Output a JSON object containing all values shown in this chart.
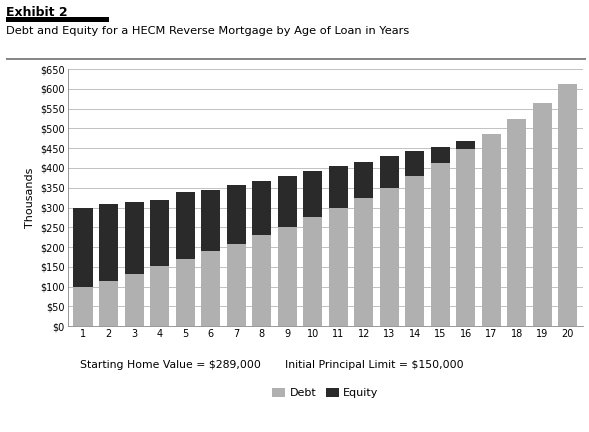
{
  "years": [
    1,
    2,
    3,
    4,
    5,
    6,
    7,
    8,
    9,
    10,
    11,
    12,
    13,
    14,
    15,
    16,
    17,
    18,
    19,
    20
  ],
  "debt": [
    100,
    115,
    132,
    153,
    170,
    190,
    208,
    230,
    252,
    275,
    298,
    323,
    350,
    380,
    413,
    447,
    487,
    525,
    565,
    612
  ],
  "equity": [
    200,
    193,
    183,
    165,
    168,
    155,
    150,
    138,
    128,
    118,
    107,
    93,
    80,
    62,
    40,
    20,
    0,
    0,
    0,
    0
  ],
  "debt_color": "#b0b0b0",
  "equity_color": "#2a2a2a",
  "title": "Debt and Equity for a HECM Reverse Mortgage by Age of Loan in Years",
  "exhibit": "Exhibit 2",
  "ylabel": "Thousands",
  "xlabel1": "Starting Home Value = $289,000",
  "xlabel2": "Initial Principal Limit = $150,000",
  "legend_debt": "Debt",
  "legend_equity": "Equity",
  "ylim": [
    0,
    650
  ],
  "yticks": [
    0,
    50,
    100,
    150,
    200,
    250,
    300,
    350,
    400,
    450,
    500,
    550,
    600,
    650
  ],
  "background_color": "#ffffff",
  "bar_width": 0.75
}
